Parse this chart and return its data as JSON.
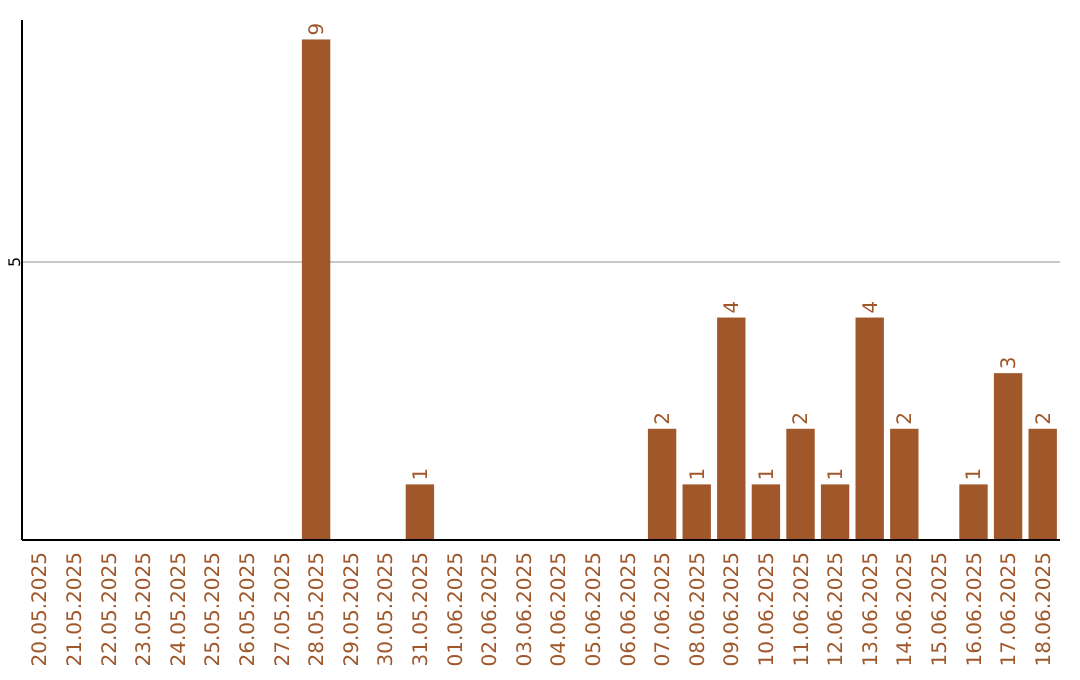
{
  "chart_data": {
    "type": "bar",
    "categories": [
      "20.05.2025",
      "21.05.2025",
      "22.05.2025",
      "23.05.2025",
      "24.05.2025",
      "25.05.2025",
      "26.05.2025",
      "27.05.2025",
      "28.05.2025",
      "29.05.2025",
      "30.05.2025",
      "31.05.2025",
      "01.06.2025",
      "02.06.2025",
      "03.06.2025",
      "04.06.2025",
      "05.06.2025",
      "06.06.2025",
      "07.06.2025",
      "08.06.2025",
      "09.06.2025",
      "10.06.2025",
      "11.06.2025",
      "12.06.2025",
      "13.06.2025",
      "14.06.2025",
      "15.06.2025",
      "16.06.2025",
      "17.06.2025",
      "18.06.2025"
    ],
    "values": [
      0,
      0,
      0,
      0,
      0,
      0,
      0,
      0,
      9,
      0,
      0,
      1,
      0,
      0,
      0,
      0,
      0,
      0,
      2,
      1,
      4,
      1,
      2,
      1,
      4,
      2,
      0,
      1,
      3,
      2
    ],
    "value_labels": [
      null,
      null,
      null,
      null,
      null,
      null,
      null,
      null,
      "9",
      null,
      null,
      "1",
      null,
      null,
      null,
      null,
      null,
      null,
      "2",
      "1",
      "4",
      "1",
      "2",
      "1",
      "4",
      "2",
      null,
      "1",
      "3",
      "2"
    ],
    "color": "#a0572a",
    "ylim": [
      0,
      9.35
    ],
    "yticks": [
      5
    ],
    "grid": "y"
  }
}
